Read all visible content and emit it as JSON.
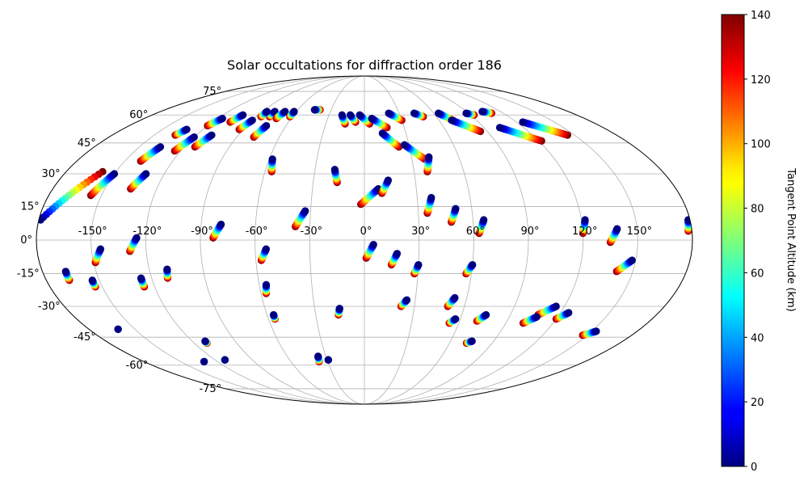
{
  "chart_data": {
    "type": "scatter",
    "projection": "mollweide",
    "title": "Solar occultations for diffraction order 186",
    "grid": true,
    "lon_range": [
      -180,
      180
    ],
    "lat_range": [
      -90,
      90
    ],
    "lon_ticks": [
      -150,
      -120,
      -90,
      -60,
      -30,
      0,
      30,
      60,
      90,
      120,
      150
    ],
    "lon_tick_labels": [
      "-150°",
      "-120°",
      "-90°",
      "-60°",
      "-30°",
      "0°",
      "30°",
      "60°",
      "90°",
      "120°",
      "150°"
    ],
    "lat_ticks": [
      -75,
      -60,
      -45,
      -30,
      -15,
      0,
      15,
      30,
      45,
      60,
      75
    ],
    "lat_tick_labels": [
      "-75°",
      "-60°",
      "-45°",
      "-30°",
      "-15°",
      "0°",
      "15°",
      "30°",
      "45°",
      "60°",
      "75°"
    ],
    "colorbar": {
      "label": "Tangent Point Altitude (km)",
      "min": 0,
      "max": 140,
      "ticks": [
        0,
        20,
        40,
        60,
        80,
        100,
        120,
        140
      ],
      "tick_labels": [
        "0",
        "20",
        "40",
        "60",
        "80",
        "100",
        "120",
        "140"
      ],
      "colormap": "jet"
    },
    "tracks": [
      {
        "start_lon": -179,
        "start_lat": 9,
        "end_lon": -158,
        "end_lat": 31
      },
      {
        "start_lon": -150,
        "start_lat": 30,
        "end_lon": -156,
        "end_lat": 20
      },
      {
        "start_lon": -131,
        "start_lat": 30,
        "end_lon": -135,
        "end_lat": 23
      },
      {
        "start_lon": -136,
        "start_lat": 43,
        "end_lon": -140,
        "end_lat": 36
      },
      {
        "start_lon": -120,
        "start_lat": 48,
        "end_lon": -124,
        "end_lat": 41
      },
      {
        "start_lon": -109,
        "start_lat": 49,
        "end_lon": -113,
        "end_lat": 43
      },
      {
        "start_lon": -116,
        "start_lat": 58,
        "end_lon": -120,
        "end_lat": 54
      },
      {
        "start_lon": -103,
        "start_lat": 60,
        "end_lon": -106,
        "end_lat": 56
      },
      {
        "start_lon": -132,
        "start_lat": 52,
        "end_lon": -135,
        "end_lat": 49
      },
      {
        "start_lon": -90,
        "start_lat": 57,
        "end_lon": -93,
        "end_lat": 52
      },
      {
        "start_lon": -75,
        "start_lat": 54,
        "end_lon": -78,
        "end_lat": 48
      },
      {
        "start_lon": -79,
        "start_lat": 62,
        "end_lon": -79,
        "end_lat": 59
      },
      {
        "start_lon": -86,
        "start_lat": 62,
        "end_lon": -86,
        "end_lat": 59
      },
      {
        "start_lon": -70,
        "start_lat": 62,
        "end_lon": -72,
        "end_lat": 58
      },
      {
        "start_lon": -62,
        "start_lat": 62,
        "end_lon": -62,
        "end_lat": 59
      },
      {
        "start_lon": -58,
        "start_lat": 37,
        "end_lon": -56,
        "end_lat": 31
      },
      {
        "start_lon": -79,
        "start_lat": 7,
        "end_lon": -83,
        "end_lat": 1
      },
      {
        "start_lon": -125,
        "start_lat": 1,
        "end_lon": -129,
        "end_lat": -5
      },
      {
        "start_lon": -145,
        "start_lat": -4,
        "end_lon": -149,
        "end_lat": -10
      },
      {
        "start_lon": -167,
        "start_lat": -14,
        "end_lon": -167,
        "end_lat": -18
      },
      {
        "start_lon": -154,
        "start_lat": -18,
        "end_lon": -154,
        "end_lat": -21
      },
      {
        "start_lon": -126,
        "start_lat": -17,
        "end_lon": -126,
        "end_lat": -21
      },
      {
        "start_lon": -110,
        "start_lat": -13,
        "end_lon": -111,
        "end_lat": -17
      },
      {
        "start_lon": -54,
        "start_lat": -4,
        "end_lon": -57,
        "end_lat": -9
      },
      {
        "start_lon": -56,
        "start_lat": -20,
        "end_lon": -57,
        "end_lat": -24
      },
      {
        "start_lon": -56,
        "start_lat": -34,
        "end_lon": -56,
        "end_lat": -36
      },
      {
        "start_lon": -33,
        "start_lat": 13,
        "end_lon": -38,
        "end_lat": 6
      },
      {
        "start_lon": -18,
        "start_lat": 32,
        "end_lon": -16,
        "end_lat": 26
      },
      {
        "start_lon": -45,
        "start_lat": 63,
        "end_lon": -40,
        "end_lat": 63
      },
      {
        "start_lon": -19,
        "start_lat": 60,
        "end_lon": -15,
        "end_lat": 55
      },
      {
        "start_lon": -12,
        "start_lat": 60,
        "end_lon": -7,
        "end_lat": 56
      },
      {
        "start_lon": -4,
        "start_lat": 60,
        "end_lon": 4,
        "end_lat": 55
      },
      {
        "start_lon": 6,
        "start_lat": 58,
        "end_lon": 17,
        "end_lat": 53
      },
      {
        "start_lon": 13,
        "start_lat": 50,
        "end_lon": 23,
        "end_lat": 43
      },
      {
        "start_lon": 27,
        "start_lat": 44,
        "end_lon": 38,
        "end_lat": 37
      },
      {
        "start_lon": 21,
        "start_lat": 61,
        "end_lon": 30,
        "end_lat": 57
      },
      {
        "start_lon": 43,
        "start_lat": 61,
        "end_lon": 49,
        "end_lat": 59
      },
      {
        "start_lon": 64,
        "start_lat": 61,
        "end_lon": 71,
        "end_lat": 57
      },
      {
        "start_lon": 70,
        "start_lat": 57,
        "end_lon": 85,
        "end_lat": 51
      },
      {
        "start_lon": 102,
        "start_lat": 53,
        "end_lon": 122,
        "end_lat": 46
      },
      {
        "start_lon": 125,
        "start_lat": 56,
        "end_lon": 145,
        "end_lat": 49
      },
      {
        "start_lon": 88,
        "start_lat": 61,
        "end_lon": 93,
        "end_lat": 60
      },
      {
        "start_lon": 104,
        "start_lat": 62,
        "end_lon": 110,
        "end_lat": 61
      },
      {
        "start_lon": 41,
        "start_lat": 38,
        "end_lon": 38,
        "end_lat": 31
      },
      {
        "start_lon": 38,
        "start_lat": 19,
        "end_lon": 35,
        "end_lat": 12
      },
      {
        "start_lon": 8,
        "start_lat": 23,
        "end_lon": -2,
        "end_lat": 16
      },
      {
        "start_lon": 14,
        "start_lat": 27,
        "end_lon": 10,
        "end_lat": 21
      },
      {
        "start_lon": 51,
        "start_lat": 14,
        "end_lon": 48,
        "end_lat": 8
      },
      {
        "start_lon": 66,
        "start_lat": 9,
        "end_lon": 63,
        "end_lat": 3
      },
      {
        "start_lon": 122,
        "start_lat": 9,
        "end_lon": 120,
        "end_lat": 3
      },
      {
        "start_lon": 139,
        "start_lat": 5,
        "end_lon": 135,
        "end_lat": -1
      },
      {
        "start_lon": 179,
        "start_lat": 9,
        "end_lon": 178,
        "end_lat": 4
      },
      {
        "start_lon": 148,
        "start_lat": -9,
        "end_lon": 141,
        "end_lat": -14
      },
      {
        "start_lon": 5,
        "start_lat": -2,
        "end_lon": 1,
        "end_lat": -8
      },
      {
        "start_lon": 18,
        "start_lat": -6,
        "end_lon": 15,
        "end_lat": -11
      },
      {
        "start_lon": 30,
        "start_lat": -11,
        "end_lon": 28,
        "end_lat": -15
      },
      {
        "start_lon": 60,
        "start_lat": -11,
        "end_lon": 57,
        "end_lat": -15
      },
      {
        "start_lon": 25,
        "start_lat": -27,
        "end_lon": 22,
        "end_lat": -30
      },
      {
        "start_lon": 53,
        "start_lat": -26,
        "end_lon": 50,
        "end_lat": -30
      },
      {
        "start_lon": -15,
        "start_lat": -31,
        "end_lon": -16,
        "end_lat": -34
      },
      {
        "start_lon": 57,
        "start_lat": -36,
        "end_lon": 54,
        "end_lat": -38
      },
      {
        "start_lon": 75,
        "start_lat": -34,
        "end_lon": 71,
        "end_lat": -37
      },
      {
        "start_lon": 115,
        "start_lat": -30,
        "end_lon": 107,
        "end_lat": -34
      },
      {
        "start_lon": 107,
        "start_lat": -35,
        "end_lon": 101,
        "end_lat": -38
      },
      {
        "start_lon": 125,
        "start_lat": -33,
        "end_lon": 120,
        "end_lat": -36
      },
      {
        "start_lon": 75,
        "start_lat": -47,
        "end_lon": 72,
        "end_lat": -48
      },
      {
        "start_lon": 153,
        "start_lat": -42,
        "end_lon": 147,
        "end_lat": -44
      },
      {
        "start_lon": -161,
        "start_lat": -41,
        "end_lon": -161,
        "end_lat": -41
      },
      {
        "start_lon": -111,
        "start_lat": -47,
        "end_lon": -111,
        "end_lat": -48
      },
      {
        "start_lon": -112,
        "start_lat": -57,
        "end_lon": -112,
        "end_lat": -57
      },
      {
        "start_lon": -131,
        "start_lat": -58,
        "end_lon": -131,
        "end_lat": -58
      },
      {
        "start_lon": -36,
        "start_lat": -55,
        "end_lon": -37,
        "end_lat": -58
      },
      {
        "start_lon": -29,
        "start_lat": -57,
        "end_lon": -29,
        "end_lat": -57
      }
    ]
  }
}
